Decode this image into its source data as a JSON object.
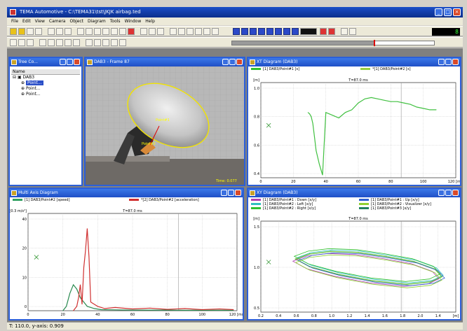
{
  "app": {
    "title": "TEMA Automotive - C:\\TEMA31\\tst\\JKJK airbag.ted",
    "menu": [
      "File",
      "Edit",
      "View",
      "Camera",
      "Object",
      "Diagram",
      "Tools",
      "Window",
      "Help"
    ],
    "frame_counter": "8"
  },
  "timeline": {
    "position": 0.7
  },
  "tree_window": {
    "title": "Tree Co...",
    "column": "Name",
    "items": [
      "DAB3",
      "Point...",
      "Point...",
      "Point..."
    ]
  },
  "camera_window": {
    "title": "DAB3 - Frame 87",
    "labels": [
      "Point#1",
      "Point#2"
    ],
    "time_label": "Time: 0.077"
  },
  "xt_window": {
    "title": "XT Diagram (DAB3)",
    "legend": [
      "[1] DAB3/Point#1 [s]",
      "*[1] DAB3/Point#2 [s]"
    ],
    "unit": "[m]",
    "time_label": "T=87.0 ms",
    "y_ticks": [
      "1.0",
      "0.8",
      "0.6",
      "0.4"
    ],
    "x_ticks": [
      "0",
      "20",
      "40",
      "60",
      "80",
      "100",
      "120 [ms]"
    ]
  },
  "multi_window": {
    "title": "Multi Axis Diagram",
    "legend": [
      "[1] DAB3/Point#2 [speed]",
      "*[2] DAB3/Point#2 [acceleration]"
    ],
    "unit": "[m/s] [0.3 m/s²]",
    "time_label": "T=87.0 ms",
    "y_ticks": [
      "40",
      "20",
      "10",
      "0"
    ],
    "x_ticks": [
      "0",
      "20",
      "40",
      "60",
      "80",
      "100",
      "120 [ms]"
    ]
  },
  "xy_window": {
    "title": "XY Diagram (DAB3)",
    "legend": [
      "[1] DAB3/Point#1 : Down [x/y]",
      "[1] DAB3/Point#2 : Left [x/y]",
      "[1] DAB3/Point#2 : Right [x/y]",
      "[1] DAB3/Point#1 : Up [x/y]",
      "[1] DAB3/Point#2 : Visualizer [x/y]",
      "[1] DAB3/Point#3 [x/y]"
    ],
    "legend_colors": [
      "#b040b0",
      "#30c0c0",
      "#30c030",
      "#3060d0",
      "#90d030",
      "#208060"
    ],
    "unit": "[m]",
    "time_label": "T=87.0 ms",
    "y_ticks": [
      "1.5",
      "1.0",
      "0.5"
    ],
    "x_ticks": [
      "0.2",
      "0.4",
      "0.6",
      "0.8",
      "1.0",
      "1.2",
      "1.4",
      "1.6",
      "1.8",
      "2.0",
      "1.4",
      "[m]"
    ]
  },
  "status": {
    "text": "T: 110.0, y-axis: 0.909"
  },
  "chart_data": [
    {
      "type": "line",
      "ylim": [
        0.4,
        1.1
      ],
      "xlim": [
        0,
        120
      ],
      "series": [
        {
          "x": [
            29,
            30,
            31,
            32,
            33,
            34,
            36,
            38,
            40,
            44,
            48,
            52,
            56,
            60,
            64,
            68,
            72,
            76,
            80,
            84,
            88,
            92,
            96,
            100,
            104,
            108
          ],
          "y": [
            0.88,
            0.87,
            0.85,
            0.8,
            0.7,
            0.6,
            0.5,
            0.42,
            0.88,
            0.86,
            0.84,
            0.88,
            0.9,
            0.95,
            0.98,
            0.99,
            0.98,
            0.97,
            0.96,
            0.96,
            0.95,
            0.94,
            0.92,
            0.91,
            0.9,
            0.9
          ]
        }
      ]
    },
    {
      "type": "line",
      "ylim": [
        0,
        45
      ],
      "xlim": [
        0,
        120
      ],
      "series": [
        {
          "x": [
            20,
            22,
            24,
            26,
            28,
            30,
            32,
            34,
            38,
            42,
            50,
            60,
            70,
            80,
            90,
            100,
            110,
            118
          ],
          "y": [
            0,
            2,
            8,
            12,
            10,
            6,
            4,
            2,
            1,
            0.5,
            0.4,
            0.3,
            0.3,
            0.3,
            0.2,
            0.2,
            0.2,
            0.2
          ]
        },
        {
          "x": [
            26,
            28,
            29,
            30,
            31,
            32,
            33,
            34,
            35,
            36,
            38,
            40,
            44,
            50,
            60,
            70,
            80,
            90,
            100,
            110,
            118
          ],
          "y": [
            0,
            2,
            6,
            12,
            3,
            20,
            28,
            38,
            25,
            4,
            3,
            2,
            1,
            1.5,
            0.8,
            1.2,
            0.6,
            1,
            0.5,
            0.8,
            0.5
          ]
        }
      ]
    },
    {
      "type": "scatter",
      "ylim": [
        0,
        1.8
      ],
      "xlim": [
        0.2,
        1.6
      ],
      "series": [
        {
          "x": [
            0.45,
            0.55,
            0.7,
            0.9,
            1.1,
            1.3,
            1.45,
            1.5,
            1.42,
            1.25,
            1.0,
            0.75,
            0.55,
            0.45
          ],
          "y": [
            1.05,
            1.15,
            1.2,
            1.18,
            1.1,
            1.0,
            0.85,
            0.7,
            0.6,
            0.55,
            0.62,
            0.75,
            0.9,
            1.05
          ]
        }
      ]
    }
  ]
}
